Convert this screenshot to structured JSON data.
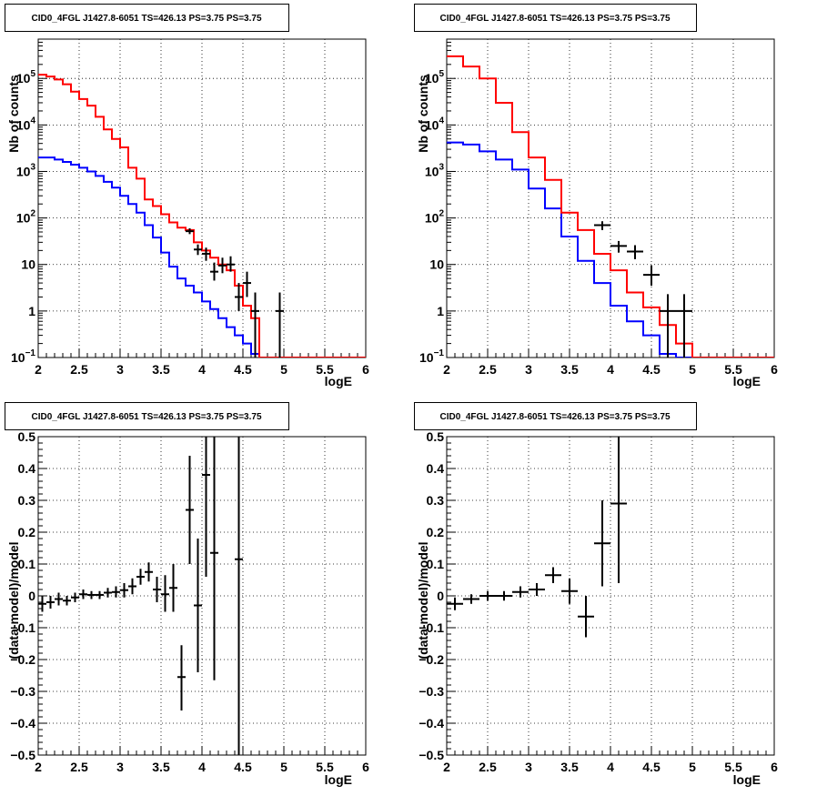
{
  "colors": {
    "data": "#000000",
    "total_model": "#ff0000",
    "source_model": "#0000ff"
  },
  "chart_data": [
    {
      "id": "counts-left",
      "type": "line",
      "title": "CID0_4FGL J1427.8-6051 TS=426.13 PS=3.75 PS=3.75",
      "xlabel": "logE",
      "ylabel": "Nb of counts",
      "xlim": [
        2,
        6
      ],
      "ylim": [
        0.1,
        700000
      ],
      "yscale": "log",
      "grid": true,
      "xticks": [
        "2",
        "2.5",
        "3",
        "3.5",
        "4",
        "4.5",
        "5",
        "5.5",
        "6"
      ],
      "yticks": [
        {
          "v": 0.1,
          "label": "10",
          "exp": "−1"
        },
        {
          "v": 1,
          "label": "1",
          "exp": ""
        },
        {
          "v": 10,
          "label": "10",
          "exp": ""
        },
        {
          "v": 100,
          "label": "10",
          "exp": "2"
        },
        {
          "v": 1000,
          "label": "10",
          "exp": "3"
        },
        {
          "v": 10000,
          "label": "10",
          "exp": "4"
        },
        {
          "v": 100000,
          "label": "10",
          "exp": "5"
        }
      ],
      "bin_edges": [
        2.0,
        2.1,
        2.2,
        2.3,
        2.4,
        2.5,
        2.6,
        2.7,
        2.8,
        2.9,
        3.0,
        3.1,
        3.2,
        3.3,
        3.4,
        3.5,
        3.6,
        3.7,
        3.8,
        3.9,
        4.0,
        4.1,
        4.2,
        4.3,
        4.4,
        4.5,
        4.6,
        4.7,
        4.8,
        4.9,
        5.0,
        5.1,
        5.2,
        5.3,
        5.4,
        5.5,
        5.6,
        5.7,
        5.8,
        5.9,
        6.0
      ],
      "series": [
        {
          "name": "",
          "role": "source_model",
          "values": [
            2000,
            2000,
            1800,
            1600,
            1400,
            1200,
            1000,
            800,
            600,
            450,
            300,
            200,
            130,
            70,
            38,
            18,
            9,
            5,
            3.5,
            2.5,
            1.6,
            1.1,
            0.7,
            0.45,
            0.3,
            0.2,
            0.12,
            0.1,
            0.1,
            0.1,
            0.1,
            0.1,
            0.1,
            0.1,
            0.1,
            0.1,
            0.1,
            0.1,
            0.1,
            0.1
          ]
        },
        {
          "name": "",
          "role": "total_model",
          "values": [
            120000,
            110000,
            95000,
            75000,
            52000,
            36000,
            26000,
            15000,
            8000,
            5000,
            3300,
            1200,
            700,
            250,
            180,
            120,
            80,
            62,
            55,
            30,
            20,
            14,
            10,
            7.5,
            3.5,
            1.3,
            0.7,
            0.1,
            0.1,
            0.1,
            0.1,
            0.1,
            0.1,
            0.1,
            0.1,
            0.1,
            0.1,
            0.1,
            0.1,
            0.1
          ]
        }
      ],
      "points": [
        {
          "x": 3.85,
          "xerr": 0.05,
          "y": 52,
          "ylo": 45,
          "yhi": 60
        },
        {
          "x": 3.95,
          "xerr": 0.05,
          "y": 21,
          "ylo": 16,
          "yhi": 27
        },
        {
          "x": 4.05,
          "xerr": 0.05,
          "y": 17,
          "ylo": 12,
          "yhi": 23
        },
        {
          "x": 4.15,
          "xerr": 0.05,
          "y": 7,
          "ylo": 4.5,
          "yhi": 11
        },
        {
          "x": 4.25,
          "xerr": 0.05,
          "y": 9.5,
          "ylo": 6.5,
          "yhi": 14
        },
        {
          "x": 4.35,
          "xerr": 0.05,
          "y": 10,
          "ylo": 7,
          "yhi": 15
        },
        {
          "x": 4.45,
          "xerr": 0.05,
          "y": 2,
          "ylo": 1,
          "yhi": 4
        },
        {
          "x": 4.55,
          "xerr": 0.05,
          "y": 4,
          "ylo": 2,
          "yhi": 7
        },
        {
          "x": 4.65,
          "xerr": 0.05,
          "y": 1,
          "ylo": 0.1,
          "yhi": 2.5
        },
        {
          "x": 4.95,
          "xerr": 0.05,
          "y": 1,
          "ylo": 0.1,
          "yhi": 2.5
        }
      ]
    },
    {
      "id": "counts-right",
      "type": "line",
      "title": "CID0_4FGL J1427.8-6051 TS=426.13 PS=3.75 PS=3.75",
      "xlabel": "logE",
      "ylabel": "Nb of counts",
      "xlim": [
        2,
        6
      ],
      "ylim": [
        0.1,
        700000
      ],
      "yscale": "log",
      "grid": true,
      "xticks": [
        "2",
        "2.5",
        "3",
        "3.5",
        "4",
        "4.5",
        "5",
        "5.5",
        "6"
      ],
      "yticks": [
        {
          "v": 0.1,
          "label": "10",
          "exp": "−1"
        },
        {
          "v": 1,
          "label": "1",
          "exp": ""
        },
        {
          "v": 10,
          "label": "10",
          "exp": ""
        },
        {
          "v": 100,
          "label": "10",
          "exp": "2"
        },
        {
          "v": 1000,
          "label": "10",
          "exp": "3"
        },
        {
          "v": 10000,
          "label": "10",
          "exp": "4"
        },
        {
          "v": 100000,
          "label": "10",
          "exp": "5"
        }
      ],
      "bin_edges": [
        2.0,
        2.2,
        2.4,
        2.6,
        2.8,
        3.0,
        3.2,
        3.4,
        3.6,
        3.8,
        4.0,
        4.2,
        4.4,
        4.6,
        4.8,
        5.0,
        5.2,
        5.4,
        5.6,
        5.8,
        6.0
      ],
      "series": [
        {
          "name": "",
          "role": "source_model",
          "values": [
            4200,
            3800,
            2700,
            1800,
            1100,
            430,
            160,
            40,
            12,
            4,
            1.3,
            0.6,
            0.3,
            0.12,
            0.1,
            0.1,
            0.1,
            0.1,
            0.1,
            0.1
          ]
        },
        {
          "name": "",
          "role": "total_model",
          "values": [
            300000,
            180000,
            100000,
            30000,
            7000,
            2000,
            660,
            130,
            55,
            17,
            7.5,
            2.5,
            1.2,
            0.5,
            0.2,
            0.1,
            0.1,
            0.1,
            0.1,
            0.1
          ]
        }
      ],
      "points": [
        {
          "x": 3.9,
          "xerr": 0.1,
          "y": 70,
          "ylo": 55,
          "yhi": 85
        },
        {
          "x": 4.1,
          "xerr": 0.1,
          "y": 25,
          "ylo": 18,
          "yhi": 32
        },
        {
          "x": 4.3,
          "xerr": 0.1,
          "y": 19,
          "ylo": 13,
          "yhi": 26
        },
        {
          "x": 4.5,
          "xerr": 0.1,
          "y": 6,
          "ylo": 3.5,
          "yhi": 9.5
        },
        {
          "x": 4.7,
          "xerr": 0.1,
          "y": 1,
          "ylo": 0.1,
          "yhi": 2.3
        },
        {
          "x": 4.9,
          "xerr": 0.1,
          "y": 1,
          "ylo": 0.1,
          "yhi": 2.3
        }
      ]
    },
    {
      "id": "residuals-left",
      "type": "scatter",
      "title": "CID0_4FGL J1427.8-6051 TS=426.13 PS=3.75 PS=3.75",
      "xlabel": "logE",
      "ylabel": "(data-model)/model",
      "xlim": [
        2,
        6
      ],
      "ylim": [
        -0.5,
        0.5
      ],
      "yscale": "linear",
      "grid": true,
      "xticks": [
        "2",
        "2.5",
        "3",
        "3.5",
        "4",
        "4.5",
        "5",
        "5.5",
        "6"
      ],
      "yticks": [
        {
          "v": -0.5,
          "label": "−0.5",
          "exp": ""
        },
        {
          "v": -0.4,
          "label": "−0.4",
          "exp": ""
        },
        {
          "v": -0.3,
          "label": "−0.3",
          "exp": ""
        },
        {
          "v": -0.2,
          "label": "−0.2",
          "exp": ""
        },
        {
          "v": -0.1,
          "label": "−0.1",
          "exp": ""
        },
        {
          "v": 0,
          "label": "0",
          "exp": ""
        },
        {
          "v": 0.1,
          "label": "0.1",
          "exp": ""
        },
        {
          "v": 0.2,
          "label": "0.2",
          "exp": ""
        },
        {
          "v": 0.3,
          "label": "0.3",
          "exp": ""
        },
        {
          "v": 0.4,
          "label": "0.4",
          "exp": ""
        },
        {
          "v": 0.5,
          "label": "0.5",
          "exp": ""
        }
      ],
      "points": [
        {
          "x": 2.05,
          "xerr": 0.05,
          "y": -0.025,
          "ylo": -0.05,
          "yhi": 0.0
        },
        {
          "x": 2.15,
          "xerr": 0.05,
          "y": -0.02,
          "ylo": -0.04,
          "yhi": 0.0
        },
        {
          "x": 2.25,
          "xerr": 0.05,
          "y": -0.01,
          "ylo": -0.03,
          "yhi": 0.01
        },
        {
          "x": 2.35,
          "xerr": 0.05,
          "y": -0.015,
          "ylo": -0.03,
          "yhi": 0.0
        },
        {
          "x": 2.45,
          "xerr": 0.05,
          "y": -0.005,
          "ylo": -0.02,
          "yhi": 0.01
        },
        {
          "x": 2.55,
          "xerr": 0.05,
          "y": 0.005,
          "ylo": -0.01,
          "yhi": 0.02
        },
        {
          "x": 2.65,
          "xerr": 0.05,
          "y": 0.003,
          "ylo": -0.01,
          "yhi": 0.015
        },
        {
          "x": 2.75,
          "xerr": 0.05,
          "y": 0.003,
          "ylo": -0.01,
          "yhi": 0.015
        },
        {
          "x": 2.85,
          "xerr": 0.05,
          "y": 0.01,
          "ylo": -0.005,
          "yhi": 0.025
        },
        {
          "x": 2.95,
          "xerr": 0.05,
          "y": 0.012,
          "ylo": -0.005,
          "yhi": 0.03
        },
        {
          "x": 3.05,
          "xerr": 0.05,
          "y": 0.018,
          "ylo": -0.005,
          "yhi": 0.04
        },
        {
          "x": 3.15,
          "xerr": 0.05,
          "y": 0.03,
          "ylo": 0.005,
          "yhi": 0.055
        },
        {
          "x": 3.25,
          "xerr": 0.05,
          "y": 0.06,
          "ylo": 0.035,
          "yhi": 0.085
        },
        {
          "x": 3.35,
          "xerr": 0.05,
          "y": 0.075,
          "ylo": 0.045,
          "yhi": 0.105
        },
        {
          "x": 3.45,
          "xerr": 0.05,
          "y": 0.02,
          "ylo": -0.02,
          "yhi": 0.06
        },
        {
          "x": 3.55,
          "xerr": 0.05,
          "y": 0.005,
          "ylo": -0.05,
          "yhi": 0.065
        },
        {
          "x": 3.65,
          "xerr": 0.05,
          "y": 0.025,
          "ylo": -0.05,
          "yhi": 0.1
        },
        {
          "x": 3.75,
          "xerr": 0.05,
          "y": -0.255,
          "ylo": -0.36,
          "yhi": -0.155
        },
        {
          "x": 3.85,
          "xerr": 0.05,
          "y": 0.27,
          "ylo": 0.1,
          "yhi": 0.44
        },
        {
          "x": 3.95,
          "xerr": 0.05,
          "y": -0.03,
          "ylo": -0.24,
          "yhi": 0.18
        },
        {
          "x": 4.05,
          "xerr": 0.05,
          "y": 0.38,
          "ylo": 0.06,
          "yhi": 0.7
        },
        {
          "x": 4.15,
          "xerr": 0.05,
          "y": 0.135,
          "ylo": -0.265,
          "yhi": 0.535
        },
        {
          "x": 4.45,
          "xerr": 0.05,
          "y": 0.115,
          "ylo": -0.6,
          "yhi": 0.8
        }
      ]
    },
    {
      "id": "residuals-right",
      "type": "scatter",
      "title": "CID0_4FGL J1427.8-6051 TS=426.13 PS=3.75 PS=3.75",
      "xlabel": "logE",
      "ylabel": "(data-model)/model",
      "xlim": [
        2,
        6
      ],
      "ylim": [
        -0.5,
        0.5
      ],
      "yscale": "linear",
      "grid": true,
      "xticks": [
        "2",
        "2.5",
        "3",
        "3.5",
        "4",
        "4.5",
        "5",
        "5.5",
        "6"
      ],
      "yticks": [
        {
          "v": -0.5,
          "label": "−0.5",
          "exp": ""
        },
        {
          "v": -0.4,
          "label": "−0.4",
          "exp": ""
        },
        {
          "v": -0.3,
          "label": "−0.3",
          "exp": ""
        },
        {
          "v": -0.2,
          "label": "−0.2",
          "exp": ""
        },
        {
          "v": -0.1,
          "label": "−0.1",
          "exp": ""
        },
        {
          "v": 0,
          "label": "0",
          "exp": ""
        },
        {
          "v": 0.1,
          "label": "0.1",
          "exp": ""
        },
        {
          "v": 0.2,
          "label": "0.2",
          "exp": ""
        },
        {
          "v": 0.3,
          "label": "0.3",
          "exp": ""
        },
        {
          "v": 0.4,
          "label": "0.4",
          "exp": ""
        },
        {
          "v": 0.5,
          "label": "0.5",
          "exp": ""
        }
      ],
      "points": [
        {
          "x": 2.1,
          "xerr": 0.1,
          "y": -0.025,
          "ylo": -0.045,
          "yhi": -0.005
        },
        {
          "x": 2.3,
          "xerr": 0.1,
          "y": -0.01,
          "ylo": -0.025,
          "yhi": 0.005
        },
        {
          "x": 2.5,
          "xerr": 0.1,
          "y": 0.0,
          "ylo": -0.015,
          "yhi": 0.015
        },
        {
          "x": 2.7,
          "xerr": 0.1,
          "y": 0.0,
          "ylo": -0.015,
          "yhi": 0.015
        },
        {
          "x": 2.9,
          "xerr": 0.1,
          "y": 0.012,
          "ylo": -0.005,
          "yhi": 0.03
        },
        {
          "x": 3.1,
          "xerr": 0.1,
          "y": 0.02,
          "ylo": 0.0,
          "yhi": 0.04
        },
        {
          "x": 3.3,
          "xerr": 0.1,
          "y": 0.065,
          "ylo": 0.04,
          "yhi": 0.09
        },
        {
          "x": 3.5,
          "xerr": 0.1,
          "y": 0.015,
          "ylo": -0.025,
          "yhi": 0.055
        },
        {
          "x": 3.7,
          "xerr": 0.1,
          "y": -0.065,
          "ylo": -0.13,
          "yhi": 0.0
        },
        {
          "x": 3.9,
          "xerr": 0.1,
          "y": 0.165,
          "ylo": 0.03,
          "yhi": 0.3
        },
        {
          "x": 4.1,
          "xerr": 0.1,
          "y": 0.29,
          "ylo": 0.04,
          "yhi": 0.54
        }
      ]
    }
  ]
}
